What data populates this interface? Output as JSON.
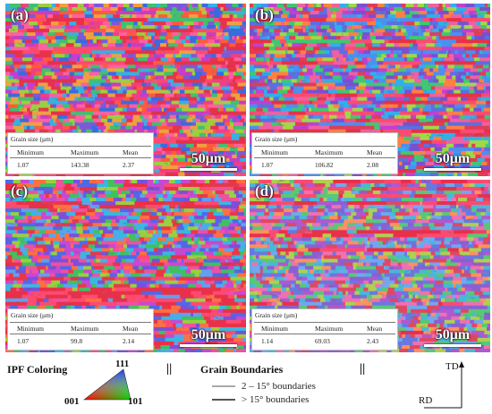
{
  "panels": [
    {
      "letter": "(a)",
      "scale": "50μm",
      "table": {
        "title": "Grain size (μm)",
        "headers": [
          "Minimum",
          "Maximum",
          "Mean"
        ],
        "values": [
          "1.07",
          "143.38",
          "2.37"
        ]
      }
    },
    {
      "letter": "(b)",
      "scale": "50μm",
      "table": {
        "title": "Grain size (μm)",
        "headers": [
          "Minimum",
          "Maximum",
          "Mean"
        ],
        "values": [
          "1.07",
          "106.82",
          "2.08"
        ]
      }
    },
    {
      "letter": "(c)",
      "scale": "50μm",
      "table": {
        "title": "Grain size (μm)",
        "headers": [
          "Minimum",
          "Maximum",
          "Mean"
        ],
        "values": [
          "1.07",
          "99.8",
          "2.14"
        ]
      }
    },
    {
      "letter": "(d)",
      "scale": "50μm",
      "table": {
        "title": "Grain size (μm)",
        "headers": [
          "Minimum",
          "Maximum",
          "Mean"
        ],
        "values": [
          "1.14",
          "69.03",
          "2.43"
        ]
      }
    }
  ],
  "legend": {
    "ipf_label": "IPF Coloring",
    "vertex_111": "111",
    "vertex_001": "001",
    "vertex_101": "101",
    "separator": "||",
    "gb_title": "Grain Boundaries",
    "gb_low": "2 – 15°  boundaries",
    "gb_high": "> 15°  boundaries",
    "axis_td": "TD",
    "axis_rd": "RD"
  },
  "colors": {
    "low_angle_boundary": "#aaaaaa",
    "high_angle_boundary": "#555555"
  }
}
